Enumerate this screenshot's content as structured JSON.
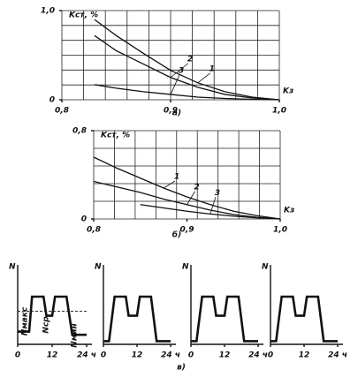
{
  "chart_data": [
    {
      "type": "line",
      "caption": "а)",
      "ylabel": "Kст, %",
      "xlabel": "Kз",
      "x": [
        0.83,
        0.85,
        0.875,
        0.9,
        0.925,
        0.95,
        0.975,
        1.0
      ],
      "series": [
        {
          "name": "1",
          "color": "#111",
          "values": [
            0.9,
            0.72,
            0.52,
            0.33,
            0.19,
            0.09,
            0.03,
            0
          ]
        },
        {
          "name": "2",
          "color": "#111",
          "values": [
            0.72,
            0.55,
            0.4,
            0.25,
            0.14,
            0.06,
            0.02,
            0
          ]
        },
        {
          "name": "3",
          "color": "#111",
          "values": [
            0.17,
            0.13,
            0.09,
            0.06,
            0.03,
            0.015,
            0.005,
            0
          ]
        }
      ],
      "xlim": [
        0.8,
        1.0
      ],
      "ylim": [
        0,
        1.0
      ],
      "xticks": [
        {
          "value": 0.8,
          "label": "0,8"
        },
        {
          "value": 0.9,
          "label": "0,9"
        },
        {
          "value": 1.0,
          "label": "1,0"
        }
      ],
      "yticks": [
        0,
        {
          "value": 1.0,
          "label": "1,0"
        }
      ],
      "grid": true
    },
    {
      "type": "line",
      "caption": "б)",
      "ylabel": "Kст, %",
      "xlabel": "Kз",
      "x": [
        0.8,
        0.825,
        0.85,
        0.875,
        0.9,
        0.925,
        0.95,
        0.975,
        1.0
      ],
      "series": [
        {
          "name": "1",
          "color": "#111",
          "values": [
            0.56,
            0.46,
            0.37,
            0.28,
            0.2,
            0.13,
            0.07,
            0.03,
            0
          ]
        },
        {
          "name": "2",
          "color": "#111",
          "values": [
            0.34,
            0.29,
            0.24,
            0.18,
            0.13,
            0.08,
            0.04,
            0.015,
            0
          ]
        },
        {
          "name": "3",
          "color": "#111",
          "values": [
            null,
            null,
            0.13,
            0.1,
            0.07,
            0.045,
            0.025,
            0.01,
            0
          ]
        }
      ],
      "xlim": [
        0.8,
        1.0
      ],
      "ylim": [
        0,
        0.8
      ],
      "xticks": [
        {
          "value": 0.8,
          "label": "0,8"
        },
        {
          "value": 0.9,
          "label": "0,9"
        },
        {
          "value": 1.0,
          "label": "1,0"
        }
      ],
      "yticks": [
        0,
        {
          "value": 0.8,
          "label": "0,8"
        }
      ],
      "grid": true
    },
    {
      "type": "step",
      "caption": "в)",
      "ylabel": "N",
      "mean": 0.52,
      "annotations": [
        "Nмакс",
        "Nср",
        "Nмин"
      ],
      "x": [
        0,
        4,
        5,
        9,
        10,
        12,
        13,
        17,
        19,
        24
      ],
      "series": [
        {
          "color": "#111",
          "values": [
            0.2,
            0.2,
            0.75,
            0.75,
            0.45,
            0.45,
            0.75,
            0.75,
            0.15,
            0.15
          ]
        }
      ],
      "xlim": [
        0,
        24
      ],
      "ylim": [
        0,
        1
      ],
      "xticks": [
        0,
        12,
        {
          "value": 24,
          "label": "24 ч"
        }
      ]
    },
    {
      "type": "step",
      "ylabel": "N",
      "x": [
        0,
        2,
        4,
        8,
        9,
        12,
        13,
        17,
        19,
        24
      ],
      "series": [
        {
          "color": "#111",
          "values": [
            0.05,
            0.05,
            0.75,
            0.75,
            0.45,
            0.45,
            0.75,
            0.75,
            0.05,
            0.05
          ]
        }
      ],
      "xlim": [
        0,
        24
      ],
      "ylim": [
        0,
        1
      ],
      "xticks": [
        0,
        12,
        {
          "value": 24,
          "label": "24 ч"
        }
      ]
    },
    {
      "type": "step",
      "ylabel": "N",
      "x": [
        0,
        2,
        4,
        8,
        9,
        12,
        13,
        17,
        19,
        24
      ],
      "series": [
        {
          "color": "#111",
          "values": [
            0.05,
            0.05,
            0.75,
            0.75,
            0.45,
            0.45,
            0.75,
            0.75,
            0.05,
            0.05
          ]
        }
      ],
      "xlim": [
        0,
        24
      ],
      "ylim": [
        0,
        1
      ],
      "xticks": [
        0,
        12,
        {
          "value": 24,
          "label": "24 ч"
        }
      ]
    },
    {
      "type": "step",
      "ylabel": "N",
      "x": [
        0,
        2,
        4,
        8,
        9,
        12,
        13,
        17,
        19,
        24
      ],
      "series": [
        {
          "color": "#111",
          "values": [
            0.05,
            0.05,
            0.75,
            0.75,
            0.45,
            0.45,
            0.75,
            0.75,
            0.05,
            0.05
          ]
        }
      ],
      "xlim": [
        0,
        24
      ],
      "ylim": [
        0,
        1
      ],
      "xticks": [
        0,
        12,
        {
          "value": 24,
          "label": "24 ч"
        }
      ]
    }
  ]
}
